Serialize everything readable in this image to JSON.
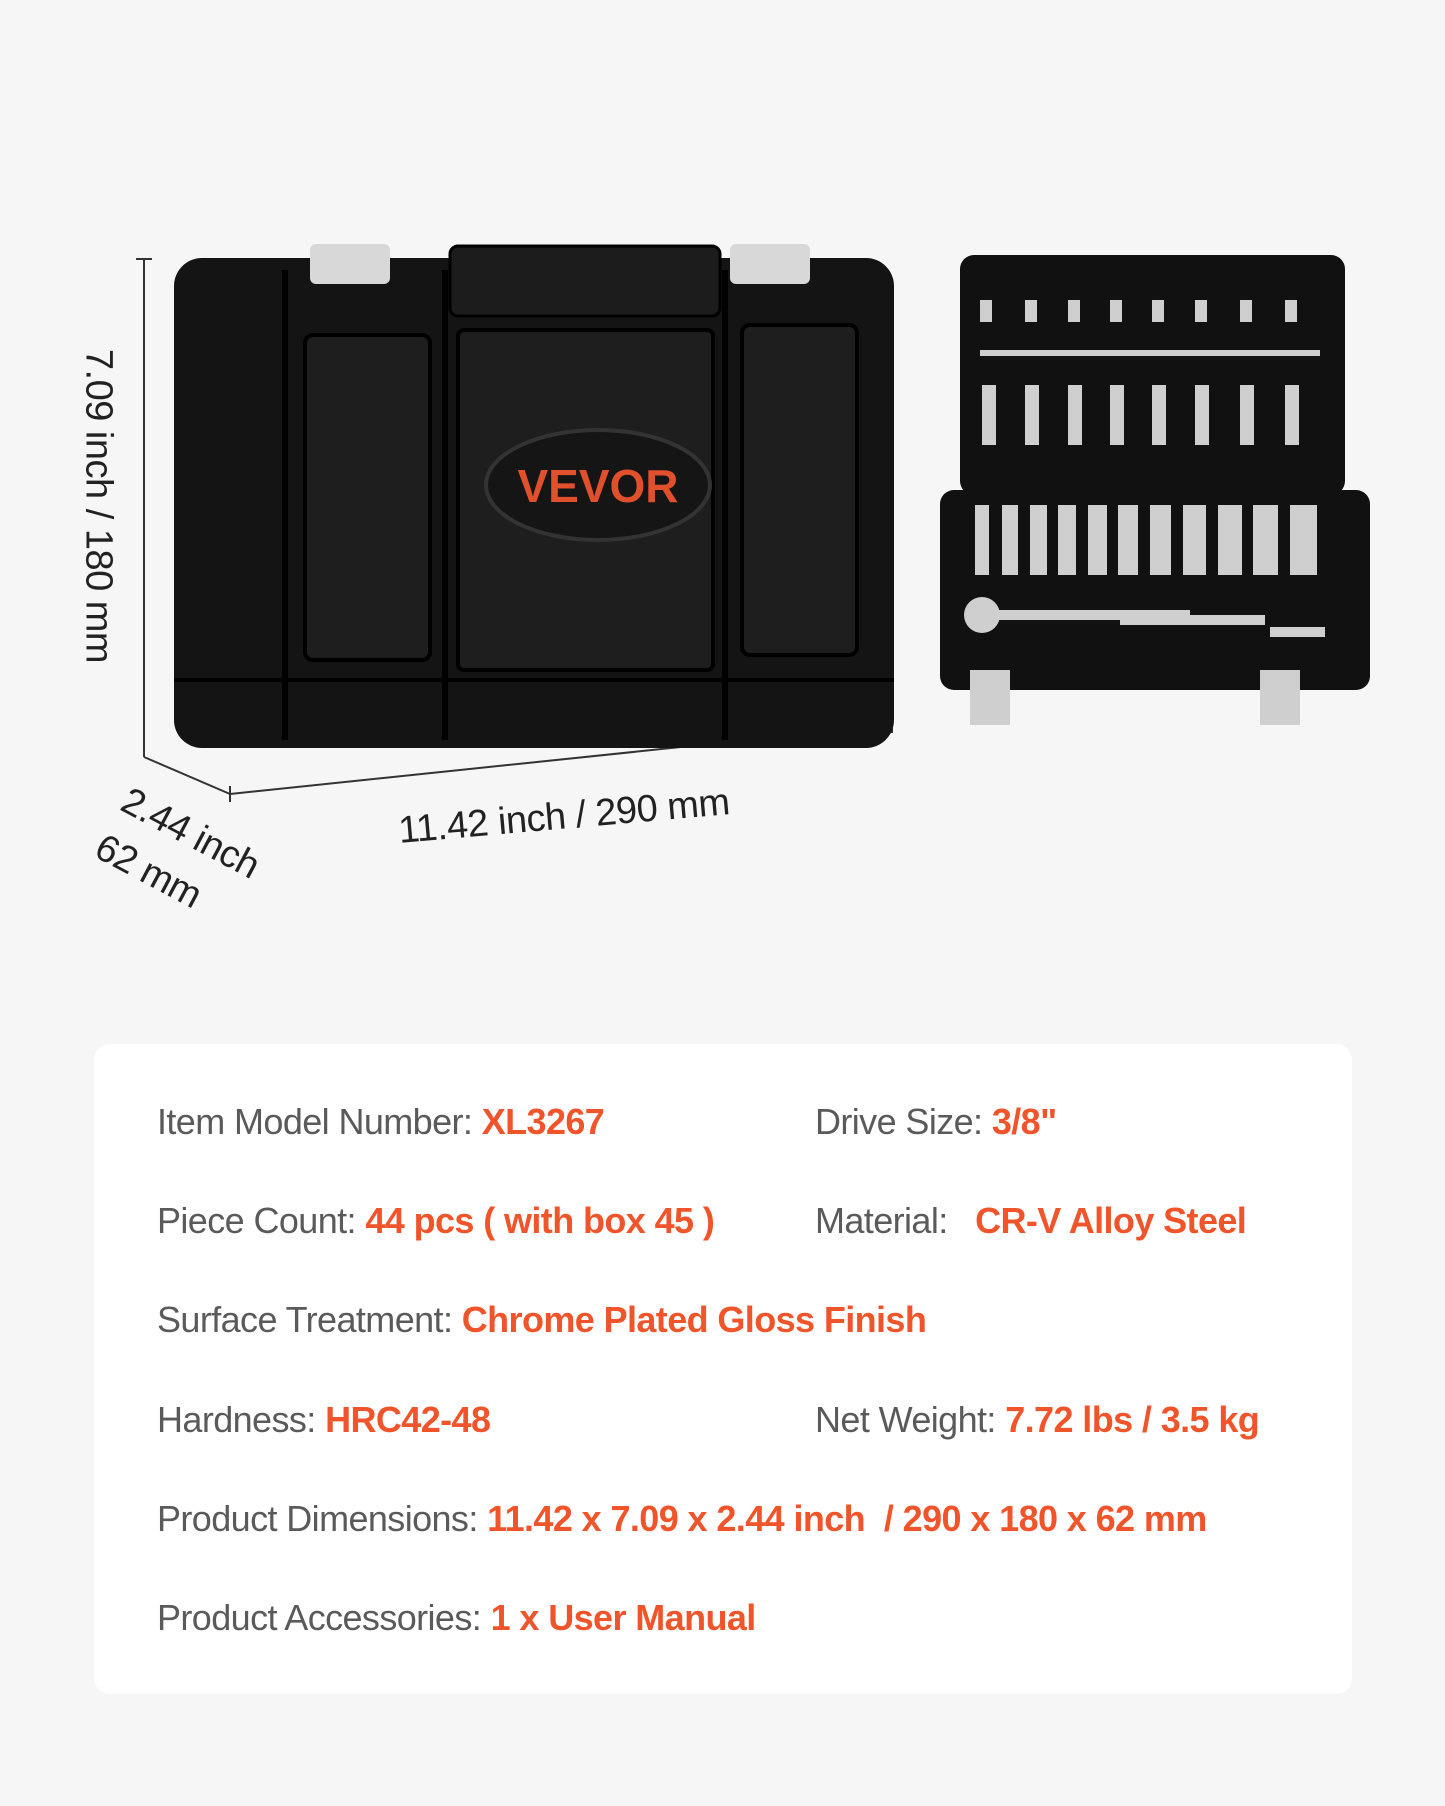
{
  "brand": "VEVOR",
  "accent_color": "#f0542a",
  "dimensions": {
    "height": "7.09 inch / 180 mm",
    "length": "11.42 inch / 290 mm",
    "depth_line1": "2.44 inch",
    "depth_line2": "62 mm"
  },
  "specs": [
    {
      "label": "Item Model Number:",
      "value": "XL3267"
    },
    {
      "label": "Drive Size:",
      "value": "3/8\""
    },
    {
      "label": "Piece Count:",
      "value": "44 pcs ( with box 45 )"
    },
    {
      "label": "Material:",
      "value": "CR-V Alloy Steel"
    },
    {
      "label": "Surface Treatment:",
      "value": "Chrome Plated Gloss Finish"
    },
    {
      "label": "Hardness:",
      "value": "HRC42-48"
    },
    {
      "label": "Net Weight:",
      "value": "7.72 lbs / 3.5 kg"
    },
    {
      "label": "Product Dimensions:",
      "value": "11.42 x 7.09 x 2.44 inch  / 290 x 180 x 62 mm"
    },
    {
      "label": "Product Accessories:",
      "value": "1 x User Manual"
    }
  ]
}
